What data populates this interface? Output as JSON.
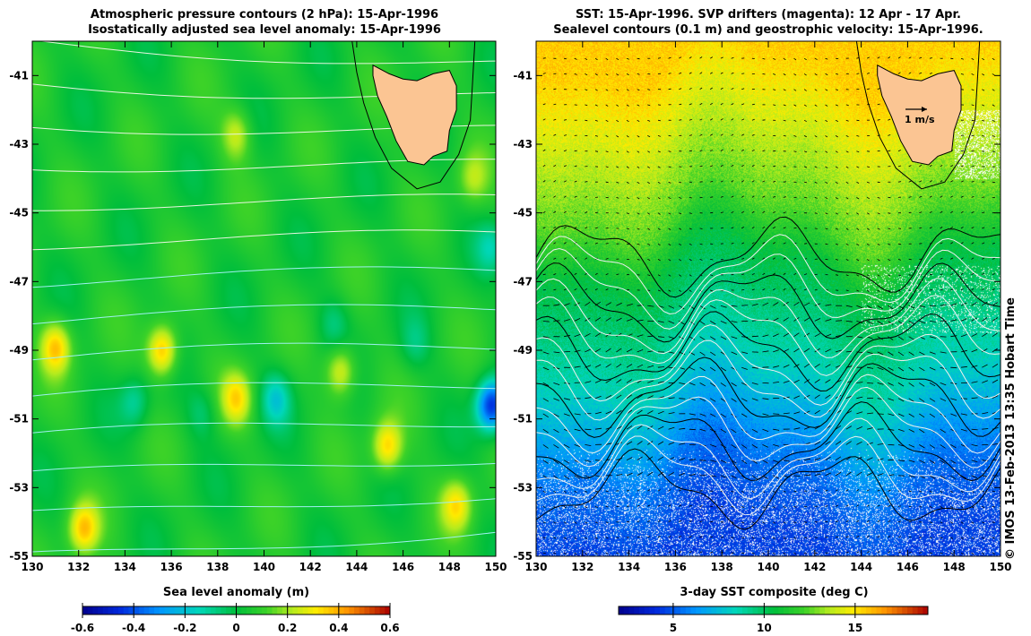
{
  "left": {
    "title_line1": "Atmospheric pressure contours (2 hPa): 15-Apr-1996",
    "title_line2": "Isostatically adjusted sea level anomaly: 15-Apr-1996",
    "colorbar_label": "Sea level anomaly (m)",
    "colorbar_ticks": [
      "-0.6",
      "-0.4",
      "-0.2",
      "0",
      "0.2",
      "0.4",
      "0.6"
    ]
  },
  "right": {
    "title_line1": "SST: 15-Apr-1996. SVP drifters (magenta): 12 Apr - 17 Apr.",
    "title_line2": "Sealevel contours (0.1 m) and geostrophic velocity: 15-Apr-1996.",
    "colorbar_label": "3-day SST composite (deg C)",
    "colorbar_ticks": [
      "5",
      "10",
      "15"
    ],
    "scale_label": "1 m/s"
  },
  "copyright": "© IMOS 13-Feb-2013 13:35 Hobart Time",
  "chart_data": [
    {
      "type": "heatmap",
      "title": "Atmospheric pressure contours (2 hPa): 15-Apr-1996 / Isostatically adjusted sea level anomaly: 15-Apr-1996",
      "xlabel": "",
      "ylabel": "",
      "xlim": [
        130,
        150
      ],
      "ylim": [
        -55,
        -40
      ],
      "x_ticks": [
        "130",
        "132",
        "134",
        "136",
        "138",
        "140",
        "142",
        "144",
        "146",
        "148",
        "150"
      ],
      "y_ticks": [
        "-41",
        "-43",
        "-45",
        "-47",
        "-49",
        "-51",
        "-53",
        "-55"
      ],
      "colorbar": {
        "label": "Sea level anomaly (m)",
        "range": [
          -0.6,
          0.6
        ]
      },
      "features": {
        "land": "Tasmania",
        "highs": [
          {
            "lon": 131.0,
            "lat": -48.9,
            "value": 0.3
          },
          {
            "lon": 135.6,
            "lat": -49.0,
            "value": 0.35
          },
          {
            "lon": 138.8,
            "lat": -50.4,
            "value": 0.25
          },
          {
            "lon": 138.8,
            "lat": -42.7,
            "value": 0.2
          },
          {
            "lon": 143.3,
            "lat": -49.6,
            "value": 0.25
          },
          {
            "lon": 145.3,
            "lat": -51.8,
            "value": 0.3
          },
          {
            "lon": 132.2,
            "lat": -54.2,
            "value": 0.3
          },
          {
            "lon": 148.3,
            "lat": -53.5,
            "value": 0.25
          },
          {
            "lon": 149.0,
            "lat": -44.0,
            "value": 0.15
          }
        ],
        "lows": [
          {
            "lon": 134.4,
            "lat": -50.5,
            "value": -0.15
          },
          {
            "lon": 140.5,
            "lat": -50.4,
            "value": -0.2
          },
          {
            "lon": 137.3,
            "lat": -50.8,
            "value": -0.1
          },
          {
            "lon": 149.8,
            "lat": -50.6,
            "value": -0.5
          },
          {
            "lon": 143.0,
            "lat": -48.2,
            "value": -0.1
          },
          {
            "lon": 146.5,
            "lat": -48.8,
            "value": -0.1
          },
          {
            "lon": 149.8,
            "lat": -46.0,
            "value": -0.15
          }
        ]
      }
    },
    {
      "type": "heatmap",
      "title": "SST: 15-Apr-1996. SVP drifters (magenta): 12 Apr - 17 Apr. / Sealevel contours (0.1 m) and geostrophic velocity: 15-Apr-1996.",
      "xlabel": "",
      "ylabel": "",
      "xlim": [
        130,
        150
      ],
      "ylim": [
        -55,
        -40
      ],
      "x_ticks": [
        "130",
        "132",
        "134",
        "136",
        "138",
        "140",
        "142",
        "144",
        "146",
        "148",
        "150"
      ],
      "y_ticks": [
        "-41",
        "-43",
        "-45",
        "-47",
        "-49",
        "-51",
        "-53",
        "-55"
      ],
      "colorbar": {
        "label": "3-day SST composite (deg C)",
        "range": [
          2,
          19
        ]
      },
      "sst_by_latitude": [
        {
          "lat": -40.5,
          "sst": 15.5
        },
        {
          "lat": -42,
          "sst": 14.5
        },
        {
          "lat": -43.5,
          "sst": 13.5
        },
        {
          "lat": -45,
          "sst": 12.5
        },
        {
          "lat": -46.5,
          "sst": 10.5
        },
        {
          "lat": -48,
          "sst": 9.5
        },
        {
          "lat": -49.5,
          "sst": 8.5
        },
        {
          "lat": -51,
          "sst": 7
        },
        {
          "lat": -52.5,
          "sst": 5.5
        },
        {
          "lat": -54.5,
          "sst": 4.5
        }
      ],
      "velocity_scale": "1 m/s",
      "land": "Tasmania"
    }
  ]
}
